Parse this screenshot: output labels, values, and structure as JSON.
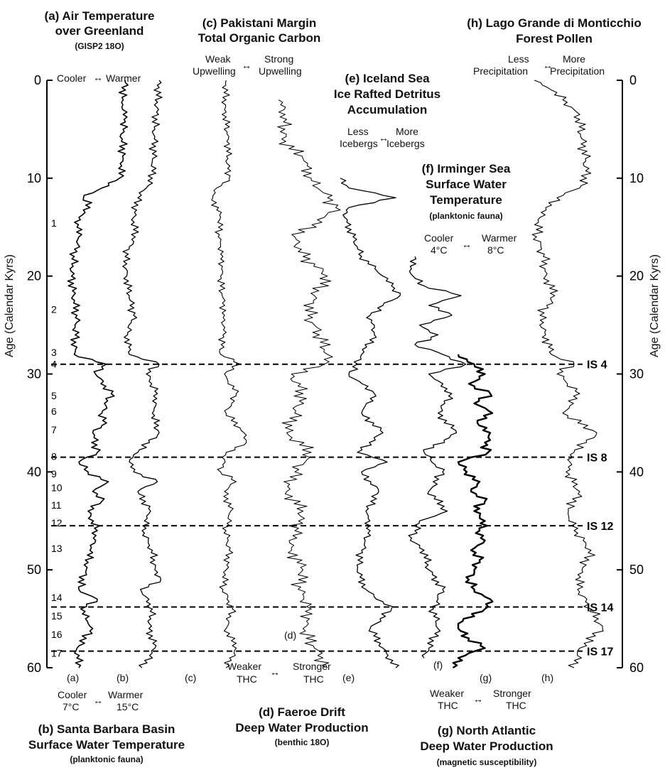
{
  "figure": {
    "axis_label_left": "Age (Calendar Kyrs)",
    "axis_label_right": "Age (Calendar Kyrs)",
    "y_ticks": [
      0,
      10,
      20,
      30,
      40,
      50,
      60
    ]
  },
  "panels": {
    "a": {
      "title1": "(a) Air Temperature",
      "title2": "over Greenland",
      "sub": "(GISP2  18O)",
      "left": "Cooler",
      "right": "Warmer",
      "arrow": "↔",
      "tag": "(a)"
    },
    "b": {
      "title1": "(b) Santa Barbara Basin",
      "title2": "Surface Water Temperature",
      "sub": "(planktonic fauna)",
      "left": "Cooler",
      "left2": "7°C",
      "right": "Warmer",
      "right2": "15°C",
      "arrow": "↔",
      "tag": "(b)"
    },
    "c": {
      "title1": "(c) Pakistani Margin",
      "title2": "Total Organic Carbon",
      "left1": "Weak",
      "left2": "Upwelling",
      "right1": "Strong",
      "right2": "Upwelling",
      "arrow": "↔",
      "tag": "(c)"
    },
    "d": {
      "title1": "(d) Faeroe Drift",
      "title2": "Deep Water Production",
      "sub": "(benthic  18O)",
      "left1": "Weaker",
      "left2": "THC",
      "right1": "Stronger",
      "right2": "THC",
      "arrow": "↔",
      "tag": "(d)"
    },
    "e": {
      "title1": "(e) Iceland Sea",
      "title2": "Ice Rafted Detritus",
      "title3": "Accumulation",
      "left1": "Less",
      "left2": "Icebergs",
      "right1": "More",
      "right2": "Icebergs",
      "arrow": "↔",
      "tag": "(e)"
    },
    "f": {
      "title1": "(f) Irminger Sea",
      "title2": "Surface Water",
      "title3": "Temperature",
      "sub": "(planktonic fauna)",
      "left1": "Cooler",
      "left2": "4°C",
      "right1": "Warmer",
      "right2": "8°C",
      "arrow": "↔",
      "tag": "(f)"
    },
    "g": {
      "title1": "(g) North Atlantic",
      "title2": "Deep Water Production",
      "sub": "(magnetic susceptibility)",
      "left1": "Weaker",
      "left2": "THC",
      "right1": "Stronger",
      "right2": "THC",
      "arrow": "↔",
      "tag": "(g)"
    },
    "h": {
      "title1": "(h) Lago Grande di Monticchio",
      "title2": "Forest Pollen",
      "left1": "Less",
      "left2": "Precipitation",
      "right1": "More",
      "right2": "Precipitation",
      "arrow": "↔",
      "tag": "(h)"
    }
  },
  "events": {
    "numbers": [
      "1",
      "2",
      "3",
      "4",
      "5",
      "6",
      "7",
      "8",
      "9",
      "10",
      "11",
      "12",
      "13",
      "14",
      "15",
      "16",
      "17"
    ],
    "numbers_age": [
      14.6,
      23.4,
      27.8,
      29.0,
      32.2,
      33.8,
      35.7,
      38.4,
      40.2,
      41.6,
      43.4,
      45.2,
      47.8,
      52.8,
      54.7,
      56.6,
      58.5
    ],
    "interstadials": [
      {
        "label": "IS 4",
        "age": 29.0
      },
      {
        "label": "IS 8",
        "age": 38.5
      },
      {
        "label": "IS 12",
        "age": 45.5
      },
      {
        "label": "IS 14",
        "age": 53.8
      },
      {
        "label": "IS 17",
        "age": 58.3
      }
    ]
  },
  "chart_data": {
    "type": "line",
    "ylabel": "Age (Calendar Kyrs)",
    "ylim": [
      0,
      60
    ],
    "y_reversed": true,
    "series": [
      {
        "name": "(a) Air Temperature over Greenland (GISP2 18O)",
        "age": [
          0,
          2,
          4,
          6,
          8,
          10,
          11,
          12,
          13,
          14,
          15,
          16,
          18,
          20,
          22,
          24,
          26,
          28,
          29,
          30,
          32,
          34,
          35,
          36,
          38,
          39,
          40,
          41,
          42,
          43,
          44,
          46,
          48,
          50,
          52,
          53,
          54,
          56,
          58,
          60
        ],
        "level": [
          0.8,
          0.78,
          0.79,
          0.77,
          0.78,
          0.74,
          0.55,
          0.35,
          0.42,
          0.3,
          0.28,
          0.3,
          0.25,
          0.22,
          0.24,
          0.28,
          0.26,
          0.25,
          0.6,
          0.48,
          0.65,
          0.55,
          0.6,
          0.45,
          0.5,
          0.3,
          0.4,
          0.62,
          0.45,
          0.55,
          0.4,
          0.5,
          0.42,
          0.38,
          0.3,
          0.5,
          0.32,
          0.45,
          0.28,
          0.3
        ]
      },
      {
        "name": "(b) Santa Barbara Basin Surface Water Temperature",
        "age": [
          0,
          5,
          10,
          11,
          12,
          14,
          16,
          17,
          18,
          20,
          22,
          24,
          26,
          28,
          29,
          30,
          32,
          34,
          36,
          38,
          39,
          40,
          41,
          42,
          44,
          46,
          48,
          50,
          51,
          52,
          54,
          56,
          58,
          60
        ],
        "level": [
          0.7,
          0.65,
          0.62,
          0.55,
          0.45,
          0.4,
          0.42,
          0.35,
          0.3,
          0.32,
          0.35,
          0.4,
          0.33,
          0.35,
          0.7,
          0.55,
          0.68,
          0.62,
          0.7,
          0.45,
          0.35,
          0.4,
          0.68,
          0.45,
          0.6,
          0.5,
          0.62,
          0.65,
          0.72,
          0.48,
          0.62,
          0.58,
          0.65,
          0.5
        ]
      },
      {
        "name": "(c) Pakistani Margin Total Organic Carbon",
        "age": [
          0,
          3,
          6,
          9,
          10,
          11,
          12,
          14,
          16,
          18,
          20,
          22,
          24,
          26,
          28,
          29,
          30,
          32,
          34,
          36,
          37,
          38,
          40,
          41,
          42,
          44,
          46,
          48,
          50,
          52,
          54,
          56,
          58,
          60
        ],
        "level": [
          0.62,
          0.6,
          0.65,
          0.64,
          0.66,
          0.5,
          0.45,
          0.55,
          0.52,
          0.58,
          0.55,
          0.57,
          0.6,
          0.58,
          0.55,
          0.8,
          0.6,
          0.75,
          0.62,
          0.85,
          0.88,
          0.62,
          0.55,
          0.75,
          0.6,
          0.68,
          0.62,
          0.66,
          0.62,
          0.58,
          0.7,
          0.62,
          0.75,
          0.62
        ]
      },
      {
        "name": "(d) Faeroe Drift Deep Water Production (benthic 18O)",
        "age": [
          2,
          4,
          6,
          8,
          10,
          12,
          13,
          14,
          16,
          18,
          20,
          22,
          24,
          26,
          28,
          29,
          30,
          32,
          34,
          36,
          38,
          40,
          42,
          44,
          46,
          48,
          50,
          52,
          54,
          56,
          58,
          60
        ],
        "level": [
          0.4,
          0.45,
          0.42,
          0.55,
          0.6,
          0.7,
          0.75,
          0.68,
          0.5,
          0.55,
          0.7,
          0.62,
          0.58,
          0.65,
          0.7,
          0.68,
          0.48,
          0.55,
          0.5,
          0.45,
          0.6,
          0.5,
          0.45,
          0.55,
          0.5,
          0.48,
          0.55,
          0.52,
          0.6,
          0.55,
          0.62,
          0.7
        ]
      },
      {
        "name": "(e) Iceland Sea Ice Rafted Detritus Accumulation",
        "age": [
          10,
          11,
          12,
          13,
          14,
          16,
          18,
          20,
          21,
          22,
          23,
          24,
          26,
          28,
          29,
          30,
          32,
          34,
          36,
          38,
          39,
          40,
          42,
          44,
          46,
          48,
          50,
          52,
          54,
          56,
          58,
          60
        ],
        "level": [
          0.2,
          0.3,
          0.85,
          0.3,
          0.25,
          0.35,
          0.45,
          0.7,
          0.8,
          0.9,
          0.7,
          0.55,
          0.6,
          0.45,
          0.4,
          0.3,
          0.6,
          0.45,
          0.7,
          0.4,
          0.75,
          0.45,
          0.65,
          0.5,
          0.55,
          0.45,
          0.4,
          0.5,
          0.8,
          0.55,
          0.7,
          0.85
        ]
      },
      {
        "name": "(f) Irminger Sea Surface Water Temperature (planktonic fauna)",
        "age": [
          18,
          19,
          20,
          21,
          22,
          23,
          24,
          25,
          26,
          27,
          28,
          29,
          30,
          32,
          34,
          36,
          38,
          40,
          42,
          44,
          45,
          46,
          47,
          48,
          50,
          52,
          54,
          56,
          58,
          59
        ],
        "level": [
          0.3,
          0.25,
          0.28,
          0.4,
          0.8,
          0.45,
          0.7,
          0.35,
          0.55,
          0.3,
          0.6,
          0.85,
          0.45,
          0.7,
          0.55,
          0.75,
          0.4,
          0.6,
          0.45,
          0.65,
          0.35,
          0.3,
          0.25,
          0.4,
          0.45,
          0.6,
          0.5,
          0.55,
          0.45,
          0.4
        ]
      },
      {
        "name": "(g) North Atlantic Deep Water Production (magnetic susceptibility)",
        "age": [
          28,
          29,
          30,
          31,
          32,
          33,
          34,
          35,
          36,
          37,
          38,
          39,
          40,
          41,
          42,
          43,
          44,
          45,
          46,
          47,
          48,
          49,
          50,
          51,
          52,
          53,
          54,
          55,
          56,
          57,
          58,
          59,
          60
        ],
        "level": [
          0.3,
          0.45,
          0.55,
          0.4,
          0.6,
          0.45,
          0.62,
          0.48,
          0.6,
          0.55,
          0.58,
          0.3,
          0.38,
          0.5,
          0.42,
          0.55,
          0.45,
          0.55,
          0.5,
          0.55,
          0.42,
          0.5,
          0.45,
          0.4,
          0.45,
          0.6,
          0.55,
          0.35,
          0.3,
          0.4,
          0.55,
          0.3,
          0.25
        ]
      },
      {
        "name": "(h) Lago Grande di Monticchio Forest Pollen",
        "age": [
          0,
          1,
          2,
          3,
          4,
          6,
          8,
          10,
          11,
          12,
          13,
          14,
          16,
          18,
          20,
          22,
          24,
          26,
          28,
          29,
          30,
          32,
          34,
          36,
          38,
          40,
          42,
          44,
          46,
          48,
          50,
          52,
          54,
          56,
          58,
          60
        ],
        "level": [
          0.2,
          0.35,
          0.45,
          0.55,
          0.6,
          0.62,
          0.65,
          0.66,
          0.6,
          0.4,
          0.3,
          0.25,
          0.22,
          0.28,
          0.3,
          0.38,
          0.25,
          0.3,
          0.35,
          0.55,
          0.4,
          0.6,
          0.45,
          0.75,
          0.55,
          0.48,
          0.6,
          0.5,
          0.55,
          0.7,
          0.62,
          0.58,
          0.7,
          0.8,
          0.6,
          0.55
        ]
      }
    ]
  }
}
